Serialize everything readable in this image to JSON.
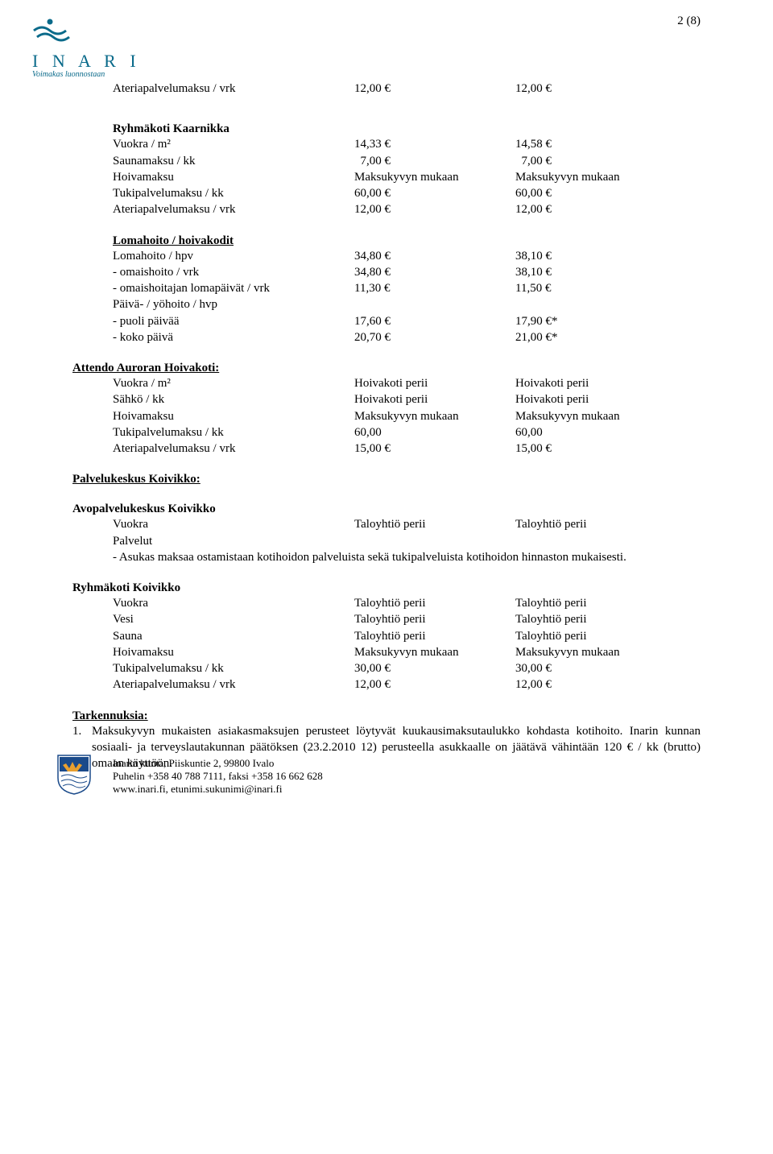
{
  "page_number": "2 (8)",
  "logo": {
    "brand": "I N A R I",
    "tagline": "Voimakas luonnostaan",
    "color": "#0a6a8a"
  },
  "first_row": {
    "label": "Ateriapalvelumaksu / vrk",
    "col1": "12,00 €",
    "col2": "12,00 €"
  },
  "kaarnikka": {
    "title": "Ryhmäkoti Kaarnikka",
    "rows": [
      {
        "label": "Vuokra / m²",
        "c1": "14,33 €",
        "c2": "14,58 €"
      },
      {
        "label": "Saunamaksu / kk",
        "c1": "  7,00 €",
        "c2": "  7,00 €"
      },
      {
        "label": "Hoivamaksu",
        "c1": "Maksukyvyn mukaan",
        "c2": "Maksukyvyn mukaan"
      },
      {
        "label": "Tukipalvelumaksu / kk",
        "c1": "60,00 €",
        "c2": "60,00 €"
      },
      {
        "label": "Ateriapalvelumaksu / vrk",
        "c1": "12,00 €",
        "c2": "12,00 €"
      }
    ]
  },
  "lomahoito": {
    "title": "Lomahoito / hoivakodit",
    "rows": [
      {
        "label": "Lomahoito / hpv",
        "c1": "34,80 €",
        "c2": "38,10 €"
      },
      {
        "label": "- omaishoito / vrk",
        "c1": "34,80 €",
        "c2": "38,10 €"
      },
      {
        "label": "- omaishoitajan lomapäivät / vrk",
        "c1": "11,30 €",
        "c2": "11,50 €"
      },
      {
        "label": "Päivä- / yöhoito / hvp",
        "c1": "",
        "c2": ""
      },
      {
        "label": "- puoli päivää",
        "c1": "17,60 €",
        "c2": "17,90 €*"
      },
      {
        "label": "- koko päivä",
        "c1": "20,70 €",
        "c2": "21,00 €*"
      }
    ]
  },
  "attendo": {
    "title": "Attendo Auroran Hoivakoti:",
    "rows": [
      {
        "label": "Vuokra / m²",
        "c1": "Hoivakoti perii",
        "c2": "Hoivakoti perii"
      },
      {
        "label": "Sähkö / kk",
        "c1": "Hoivakoti perii",
        "c2": "Hoivakoti perii"
      },
      {
        "label": "Hoivamaksu",
        "c1": "Maksukyvyn mukaan",
        "c2": "Maksukyvyn mukaan"
      },
      {
        "label": "Tukipalvelumaksu / kk",
        "c1": "60,00",
        "c2": "60,00"
      },
      {
        "label": "Ateriapalvelumaksu / vrk",
        "c1": "15,00 €",
        "c2": "15,00 €"
      }
    ]
  },
  "koivikko_pk": {
    "title": "Palvelukeskus Koivikko:"
  },
  "avopalvelu": {
    "title": "Avopalvelukeskus Koivikko",
    "rows": [
      {
        "label": "Vuokra",
        "c1": "Taloyhtiö perii",
        "c2": "Taloyhtiö perii"
      },
      {
        "label": "Palvelut",
        "c1": "",
        "c2": ""
      }
    ],
    "note": "- Asukas maksaa ostamistaan kotihoidon palveluista sekä tukipalveluista kotihoidon hinnaston mukaisesti."
  },
  "ryhmakoti_koivikko": {
    "title": "Ryhmäkoti Koivikko",
    "rows": [
      {
        "label": "Vuokra",
        "c1": "Taloyhtiö perii",
        "c2": "Taloyhtiö perii"
      },
      {
        "label": "Vesi",
        "c1": "Taloyhtiö perii",
        "c2": "Taloyhtiö perii"
      },
      {
        "label": "Sauna",
        "c1": "Taloyhtiö perii",
        "c2": "Taloyhtiö perii"
      },
      {
        "label": "Hoivamaksu",
        "c1": "Maksukyvyn mukaan",
        "c2": "Maksukyvyn mukaan"
      },
      {
        "label": "Tukipalvelumaksu / kk",
        "c1": "30,00 €",
        "c2": "30,00 €"
      },
      {
        "label": "Ateriapalvelumaksu / vrk",
        "c1": "12,00 €",
        "c2": "12,00 €"
      }
    ]
  },
  "tarkennus": {
    "title": "Tarkennuksia:",
    "item_num": "1.",
    "item_text": "Maksukyvyn mukaisten asiakasmaksujen perusteet löytyvät kuukausimaksutaulukko kohdasta kotihoito. Inarin kunnan sosiaali- ja terveyslautakunnan päätöksen (23.2.2010 12) perusteella asukkaalle on jäätävä vähintään 120 € / kk (brutto) omaan käyttöön."
  },
  "footer": {
    "line1": "Inarin kunta, Piiskuntie 2, 99800 Ivalo",
    "line2": "Puhelin +358 40 788 7111, faksi +358 16 662 628",
    "line3": "www.inari.fi, etunimi.sukunimi@inari.fi"
  }
}
